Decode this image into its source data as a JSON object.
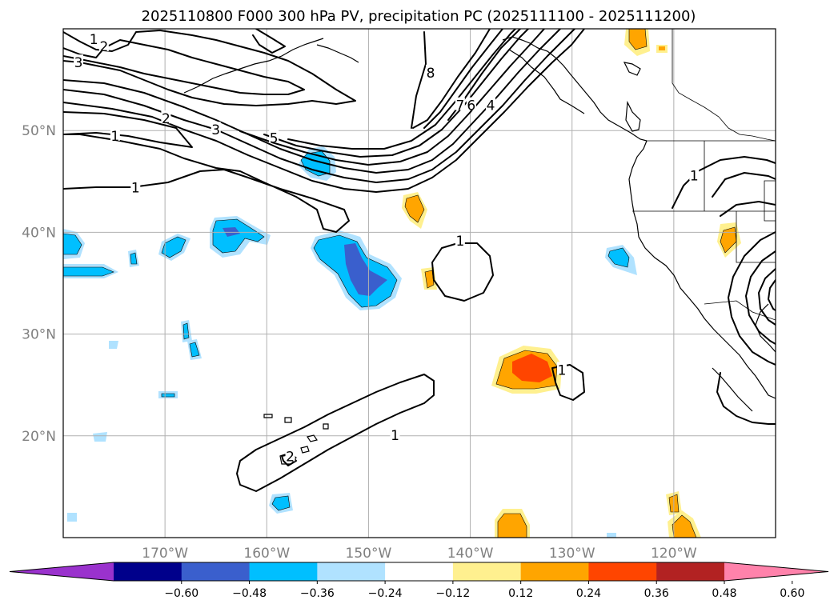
{
  "title": "2025110800 F000 300 hPa PV, precipitation PC (2025111100 - 2025111200)",
  "map": {
    "lon_range": [
      -180,
      -110
    ],
    "lat_range": [
      10,
      60
    ],
    "lon_ticks": [
      {
        "lon": -170,
        "label": "170°W"
      },
      {
        "lon": -160,
        "label": "160°W"
      },
      {
        "lon": -150,
        "label": "150°W"
      },
      {
        "lon": -140,
        "label": "140°W"
      },
      {
        "lon": -130,
        "label": "130°W"
      },
      {
        "lon": -120,
        "label": "120°W"
      }
    ],
    "lat_ticks": [
      {
        "lat": 50,
        "label": "50°N"
      },
      {
        "lat": 40,
        "label": "40°N"
      },
      {
        "lat": 30,
        "label": "30°N"
      },
      {
        "lat": 20,
        "label": "20°N"
      }
    ],
    "gridlines": true
  },
  "contour_labels": [
    {
      "text": "1",
      "lon": -177.0,
      "lat": 58.9
    },
    {
      "text": "2",
      "lon": -176.0,
      "lat": 58.2
    },
    {
      "text": "3",
      "lon": -178.5,
      "lat": 56.6
    },
    {
      "text": "1",
      "lon": -174.9,
      "lat": 49.4
    },
    {
      "text": "2",
      "lon": -169.9,
      "lat": 51.1
    },
    {
      "text": "3",
      "lon": -165.0,
      "lat": 50.0
    },
    {
      "text": "5",
      "lon": -159.3,
      "lat": 49.2
    },
    {
      "text": "1",
      "lon": -172.9,
      "lat": 44.3
    },
    {
      "text": "8",
      "lon": -143.9,
      "lat": 55.6
    },
    {
      "text": "7",
      "lon": -141.0,
      "lat": 52.4
    },
    {
      "text": "6",
      "lon": -139.9,
      "lat": 52.4
    },
    {
      "text": "4",
      "lon": -138.0,
      "lat": 52.4
    },
    {
      "text": "1",
      "lon": -141.0,
      "lat": 39.1
    },
    {
      "text": "1",
      "lon": -131.0,
      "lat": 26.4
    },
    {
      "text": "1",
      "lon": -147.4,
      "lat": 20.0
    },
    {
      "text": "2",
      "lon": -157.7,
      "lat": 17.9
    },
    {
      "text": "1",
      "lon": -118.0,
      "lat": 45.5
    }
  ],
  "colorbar": {
    "colors": [
      "#9a32cd",
      "#00008b",
      "#3a5fcd",
      "#00bfff",
      "#b0e2ff",
      "#ffffff",
      "#fff08f",
      "#ffa500",
      "#ff4500",
      "#b22222",
      "#ff82ab"
    ],
    "labels": [
      "−0.60",
      "−0.48",
      "−0.36",
      "−0.24",
      "−0.12",
      "0.12",
      "0.24",
      "0.36",
      "0.48",
      "0.60"
    ],
    "extend": "both"
  }
}
